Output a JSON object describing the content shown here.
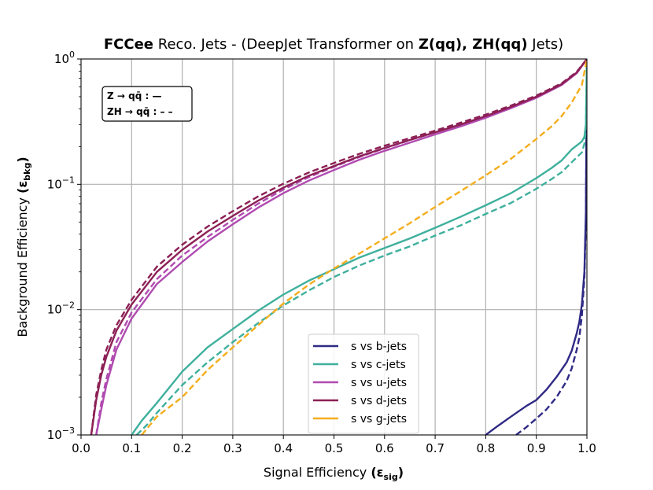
{
  "chart_data": {
    "type": "line",
    "title": {
      "bold_prefix": "FCCee",
      "main": "Reco. Jets - (DeepJet Transformer on",
      "bold_proc": "Z(qq), ZH(qq)",
      "suffix": "Jets)"
    },
    "xlabel": "Signal Efficiency",
    "xlabel_sub": "sig",
    "ylabel": "Background Efficiency",
    "ylabel_sub": "bkg",
    "xscale": "linear",
    "yscale": "log",
    "xlim": [
      0.0,
      1.0
    ],
    "ylim": [
      0.001,
      1.0
    ],
    "xticks": [
      0.0,
      0.1,
      0.2,
      0.3,
      0.4,
      0.5,
      0.6,
      0.7,
      0.8,
      0.9,
      1.0
    ],
    "xtick_labels": [
      "0.0",
      "0.1",
      "0.2",
      "0.3",
      "0.4",
      "0.5",
      "0.6",
      "0.7",
      "0.8",
      "0.9",
      "1.0"
    ],
    "yticks": [
      0.001,
      0.01,
      0.1,
      1.0
    ],
    "ytick_labels": [
      {
        "base": "10",
        "exp": "−3"
      },
      {
        "base": "10",
        "exp": "−2"
      },
      {
        "base": "10",
        "exp": "−1"
      },
      {
        "base": "10",
        "exp": "0"
      }
    ],
    "grid": true,
    "annotation": {
      "line1": "Z → qq̄ : —",
      "line2": "ZH → qq̄ : – –",
      "placement": "top-left"
    },
    "legend": {
      "placement": "lower-center",
      "entries": [
        {
          "label": "s vs b-jets",
          "color": "#2f2a85"
        },
        {
          "label": "s vs c-jets",
          "color": "#3fb09d"
        },
        {
          "label": "s vs u-jets",
          "color": "#b04ab0"
        },
        {
          "label": "s vs d-jets",
          "color": "#8c2055"
        },
        {
          "label": "s vs g-jets",
          "color": "#f4ae1e"
        }
      ]
    },
    "series": [
      {
        "name": "s vs b-jets",
        "sample": "Z(qq)",
        "style": "solid",
        "color": "#2f2a85",
        "x": [
          0.8,
          0.82,
          0.85,
          0.88,
          0.9,
          0.92,
          0.94,
          0.96,
          0.97,
          0.98,
          0.985,
          0.99,
          0.995,
          0.998,
          1.0
        ],
        "y": [
          0.001,
          0.00115,
          0.0014,
          0.0017,
          0.0019,
          0.0023,
          0.0029,
          0.0038,
          0.0047,
          0.0065,
          0.008,
          0.011,
          0.02,
          0.06,
          1.0
        ]
      },
      {
        "name": "s vs b-jets",
        "sample": "ZH(qq)",
        "style": "dashed",
        "color": "#2f2a85",
        "x": [
          0.86,
          0.88,
          0.9,
          0.92,
          0.94,
          0.96,
          0.97,
          0.98,
          0.985,
          0.99,
          0.995,
          0.998,
          1.0
        ],
        "y": [
          0.001,
          0.00115,
          0.00135,
          0.0016,
          0.002,
          0.0027,
          0.0034,
          0.0048,
          0.006,
          0.009,
          0.018,
          0.05,
          1.0
        ]
      },
      {
        "name": "s vs c-jets",
        "sample": "Z(qq)",
        "style": "solid",
        "color": "#3fb09d",
        "x": [
          0.1,
          0.12,
          0.15,
          0.2,
          0.25,
          0.3,
          0.35,
          0.4,
          0.45,
          0.5,
          0.55,
          0.6,
          0.65,
          0.7,
          0.75,
          0.8,
          0.85,
          0.9,
          0.93,
          0.95,
          0.97,
          0.99,
          0.995,
          0.998,
          1.0
        ],
        "y": [
          0.001,
          0.0013,
          0.0018,
          0.0032,
          0.005,
          0.007,
          0.0098,
          0.0132,
          0.017,
          0.021,
          0.026,
          0.031,
          0.037,
          0.045,
          0.055,
          0.068,
          0.085,
          0.112,
          0.135,
          0.155,
          0.19,
          0.22,
          0.24,
          0.3,
          1.0
        ]
      },
      {
        "name": "s vs c-jets",
        "sample": "ZH(qq)",
        "style": "dashed",
        "color": "#3fb09d",
        "x": [
          0.11,
          0.13,
          0.15,
          0.2,
          0.25,
          0.3,
          0.35,
          0.4,
          0.45,
          0.5,
          0.55,
          0.6,
          0.65,
          0.7,
          0.75,
          0.8,
          0.85,
          0.9,
          0.93,
          0.95,
          0.97,
          0.99,
          0.995,
          0.998,
          1.0
        ],
        "y": [
          0.001,
          0.0012,
          0.0015,
          0.0025,
          0.0038,
          0.0055,
          0.0078,
          0.0108,
          0.0142,
          0.0182,
          0.0225,
          0.027,
          0.032,
          0.039,
          0.047,
          0.058,
          0.071,
          0.092,
          0.11,
          0.125,
          0.15,
          0.18,
          0.21,
          0.28,
          1.0
        ]
      },
      {
        "name": "s vs u-jets",
        "sample": "Z(qq)",
        "style": "solid",
        "color": "#b04ab0",
        "x": [
          0.03,
          0.04,
          0.05,
          0.07,
          0.1,
          0.15,
          0.2,
          0.25,
          0.3,
          0.35,
          0.4,
          0.45,
          0.5,
          0.55,
          0.6,
          0.65,
          0.7,
          0.75,
          0.8,
          0.85,
          0.9,
          0.95,
          0.98,
          1.0
        ],
        "y": [
          0.001,
          0.0016,
          0.0025,
          0.0048,
          0.0085,
          0.016,
          0.024,
          0.035,
          0.048,
          0.065,
          0.085,
          0.107,
          0.13,
          0.157,
          0.185,
          0.215,
          0.25,
          0.29,
          0.34,
          0.405,
          0.49,
          0.62,
          0.77,
          1.0
        ]
      },
      {
        "name": "s vs u-jets",
        "sample": "ZH(qq)",
        "style": "dashed",
        "color": "#b04ab0",
        "x": [
          0.03,
          0.04,
          0.05,
          0.07,
          0.1,
          0.15,
          0.2,
          0.25,
          0.3,
          0.35,
          0.4,
          0.45,
          0.5,
          0.55,
          0.6,
          0.65,
          0.7,
          0.75,
          0.8,
          0.85,
          0.9,
          0.95,
          0.98,
          1.0
        ],
        "y": [
          0.001,
          0.0018,
          0.0028,
          0.0055,
          0.0095,
          0.0175,
          0.027,
          0.038,
          0.052,
          0.07,
          0.091,
          0.114,
          0.138,
          0.165,
          0.194,
          0.225,
          0.26,
          0.3,
          0.35,
          0.415,
          0.5,
          0.63,
          0.78,
          1.0
        ]
      },
      {
        "name": "s vs d-jets",
        "sample": "Z(qq)",
        "style": "solid",
        "color": "#8c2055",
        "x": [
          0.02,
          0.03,
          0.04,
          0.05,
          0.07,
          0.1,
          0.15,
          0.2,
          0.25,
          0.3,
          0.35,
          0.4,
          0.45,
          0.5,
          0.55,
          0.6,
          0.65,
          0.7,
          0.75,
          0.8,
          0.85,
          0.9,
          0.95,
          0.98,
          1.0
        ],
        "y": [
          0.001,
          0.0019,
          0.003,
          0.0042,
          0.0068,
          0.011,
          0.02,
          0.03,
          0.042,
          0.056,
          0.074,
          0.094,
          0.117,
          0.14,
          0.167,
          0.195,
          0.226,
          0.26,
          0.3,
          0.35,
          0.415,
          0.5,
          0.63,
          0.78,
          1.0
        ]
      },
      {
        "name": "s vs d-jets",
        "sample": "ZH(qq)",
        "style": "dashed",
        "color": "#8c2055",
        "x": [
          0.02,
          0.03,
          0.04,
          0.05,
          0.07,
          0.1,
          0.15,
          0.2,
          0.25,
          0.3,
          0.35,
          0.4,
          0.45,
          0.5,
          0.55,
          0.6,
          0.65,
          0.7,
          0.75,
          0.8,
          0.85,
          0.9,
          0.95,
          0.98,
          1.0
        ],
        "y": [
          0.001,
          0.0021,
          0.0033,
          0.0048,
          0.0075,
          0.012,
          0.022,
          0.033,
          0.046,
          0.061,
          0.08,
          0.101,
          0.124,
          0.148,
          0.175,
          0.203,
          0.234,
          0.268,
          0.31,
          0.36,
          0.425,
          0.51,
          0.64,
          0.79,
          1.0
        ]
      },
      {
        "name": "s vs g-jets",
        "sample": "ZH(qq)",
        "style": "dashed",
        "color": "#f4ae1e",
        "x": [
          0.12,
          0.15,
          0.2,
          0.25,
          0.3,
          0.35,
          0.4,
          0.45,
          0.5,
          0.55,
          0.6,
          0.65,
          0.7,
          0.75,
          0.8,
          0.85,
          0.9,
          0.93,
          0.95,
          0.97,
          0.99,
          1.0
        ],
        "y": [
          0.001,
          0.0014,
          0.002,
          0.0033,
          0.005,
          0.0075,
          0.0112,
          0.0158,
          0.0213,
          0.028,
          0.037,
          0.049,
          0.066,
          0.088,
          0.118,
          0.16,
          0.23,
          0.29,
          0.35,
          0.45,
          0.62,
          1.0
        ]
      }
    ]
  }
}
